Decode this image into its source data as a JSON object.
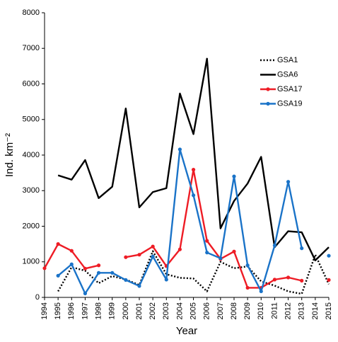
{
  "chart_data": {
    "type": "line",
    "x_label": "Year",
    "y_label": "Ind. km⁻²",
    "categories": [
      "1994",
      "1995",
      "1996",
      "1997",
      "1998",
      "1999",
      "2000",
      "2001",
      "2002",
      "2003",
      "2004",
      "2005",
      "2006",
      "2007",
      "2008",
      "2009",
      "2010",
      "2011",
      "2012",
      "2013",
      "2014",
      "2015"
    ],
    "series": [
      {
        "name": "GSA1",
        "color": "#000000",
        "style": "dotted",
        "markers": false,
        "values": [
          null,
          170,
          850,
          750,
          400,
          600,
          500,
          350,
          1300,
          650,
          550,
          530,
          170,
          1000,
          820,
          870,
          450,
          330,
          170,
          100,
          1200,
          370
        ]
      },
      {
        "name": "GSA6",
        "color": "#000000",
        "style": "solid",
        "markers": false,
        "values": [
          null,
          3430,
          3310,
          3860,
          2790,
          3110,
          5310,
          2530,
          2960,
          3070,
          5730,
          4590,
          6710,
          1940,
          2710,
          3200,
          3950,
          1410,
          1860,
          1830,
          1040,
          1410
        ]
      },
      {
        "name": "GSA17",
        "color": "#ee1c25",
        "style": "solid",
        "markers": true,
        "values": [
          820,
          1500,
          1310,
          810,
          900,
          null,
          1130,
          1200,
          1430,
          880,
          1350,
          3590,
          1590,
          1080,
          1290,
          270,
          270,
          500,
          560,
          470,
          null,
          490
        ]
      },
      {
        "name": "GSA19",
        "color": "#1a73c8",
        "style": "solid",
        "markers": true,
        "values": [
          null,
          610,
          930,
          110,
          690,
          690,
          490,
          320,
          1150,
          500,
          4160,
          2870,
          1260,
          1100,
          3400,
          900,
          170,
          1460,
          3250,
          1380,
          null,
          1170
        ]
      }
    ],
    "ylim": [
      0,
      8000
    ],
    "yticks": [
      0,
      1000,
      2000,
      3000,
      4000,
      5000,
      6000,
      7000,
      8000
    ],
    "grid": false,
    "legend": "upper right"
  }
}
